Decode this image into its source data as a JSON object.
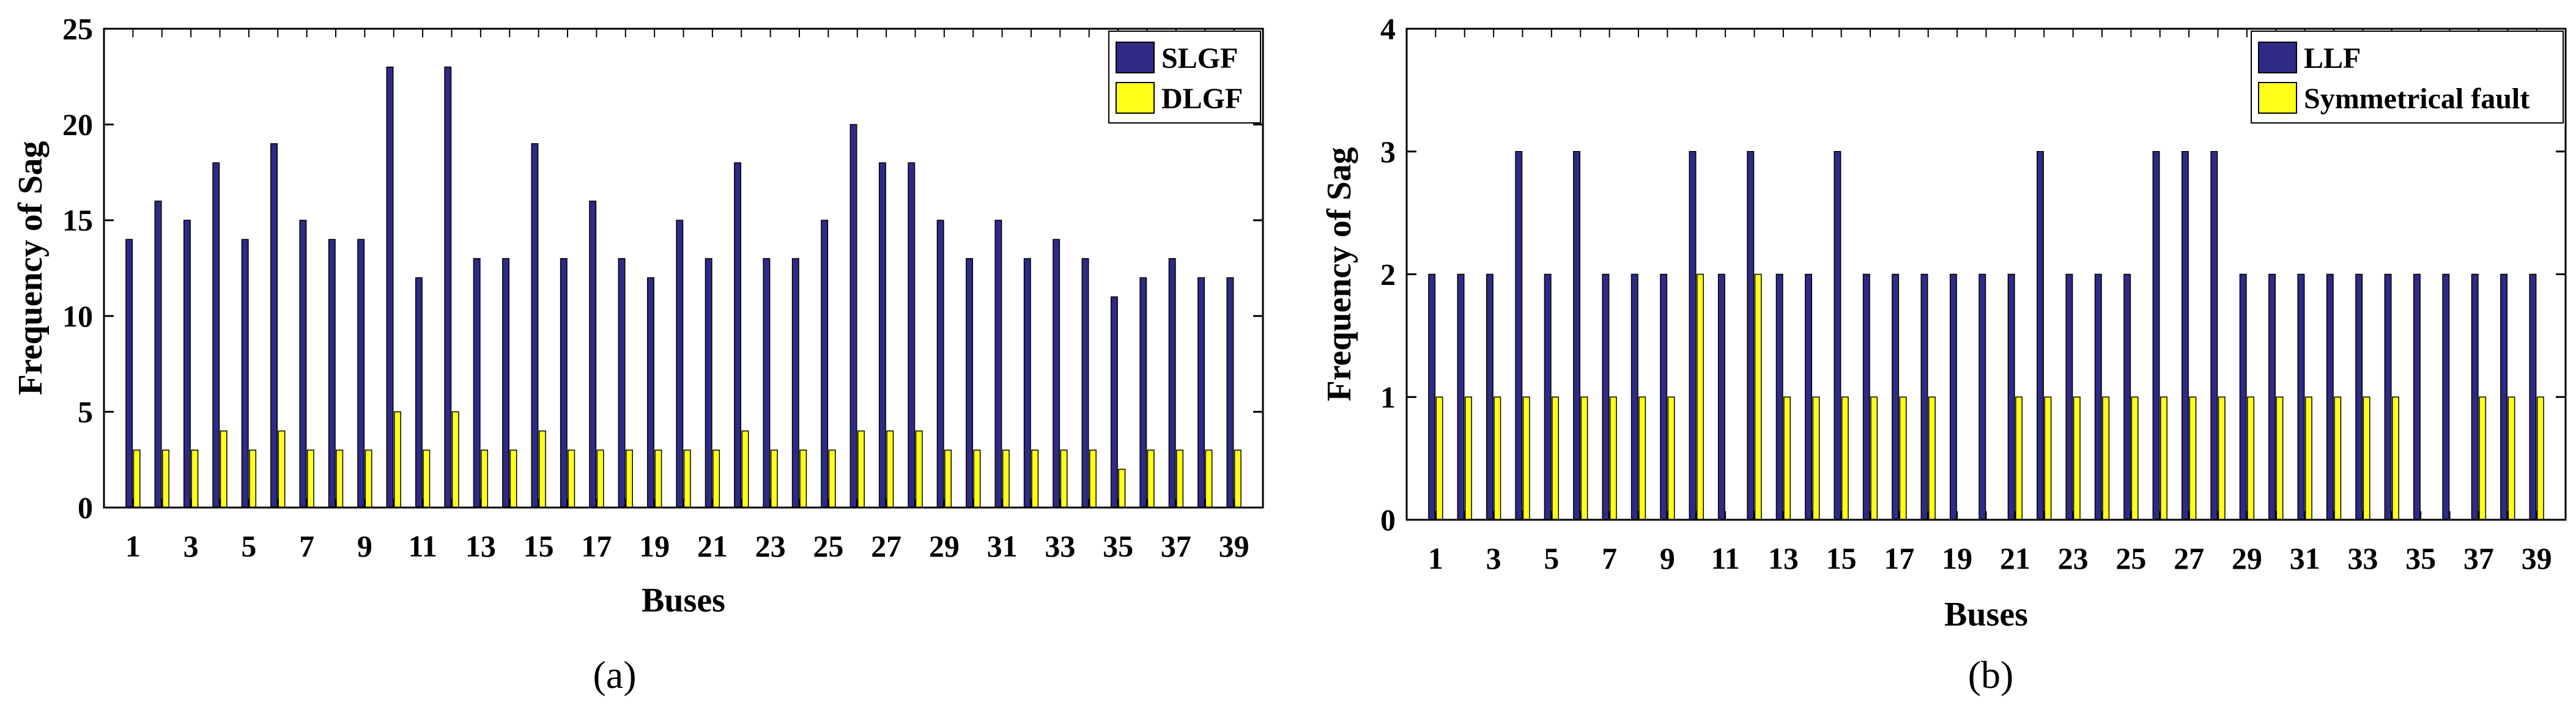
{
  "chart_data": [
    {
      "type": "bar",
      "caption": "(a)",
      "xlabel": "Buses",
      "ylabel": "Frequency of Sag",
      "ylim": [
        0,
        25
      ],
      "yticks": [
        0,
        5,
        10,
        15,
        20,
        25
      ],
      "categories": [
        1,
        2,
        3,
        4,
        5,
        6,
        7,
        8,
        9,
        10,
        11,
        12,
        13,
        14,
        15,
        16,
        17,
        18,
        19,
        20,
        21,
        22,
        23,
        24,
        25,
        26,
        27,
        28,
        29,
        30,
        31,
        32,
        33,
        34,
        35,
        36,
        37,
        38,
        39
      ],
      "xtick_labels": [
        "1",
        "3",
        "5",
        "7",
        "9",
        "11",
        "13",
        "15",
        "17",
        "19",
        "21",
        "23",
        "25",
        "27",
        "29",
        "31",
        "33",
        "35",
        "37",
        "39"
      ],
      "legend_position": "top-right",
      "series": [
        {
          "name": "SLGF",
          "color": "#2e2a86",
          "values": [
            14,
            16,
            15,
            18,
            14,
            19,
            15,
            14,
            14,
            23,
            12,
            23,
            13,
            13,
            19,
            13,
            16,
            13,
            12,
            15,
            13,
            18,
            13,
            13,
            15,
            20,
            18,
            18,
            15,
            13,
            15,
            13,
            14,
            13,
            11,
            12,
            13,
            12,
            12
          ]
        },
        {
          "name": "DLGF",
          "color": "#ffff1a",
          "values": [
            3,
            3,
            3,
            4,
            3,
            4,
            3,
            3,
            3,
            5,
            3,
            5,
            3,
            3,
            4,
            3,
            3,
            3,
            3,
            3,
            3,
            4,
            3,
            3,
            3,
            4,
            4,
            4,
            3,
            3,
            3,
            3,
            3,
            3,
            2,
            3,
            3,
            3,
            3
          ]
        }
      ]
    },
    {
      "type": "bar",
      "caption": "(b)",
      "xlabel": "Buses",
      "ylabel": "Frequency of Sag",
      "ylim": [
        0,
        4
      ],
      "yticks": [
        0,
        1,
        2,
        3,
        4
      ],
      "categories": [
        1,
        2,
        3,
        4,
        5,
        6,
        7,
        8,
        9,
        10,
        11,
        12,
        13,
        14,
        15,
        16,
        17,
        18,
        19,
        20,
        21,
        22,
        23,
        24,
        25,
        26,
        27,
        28,
        29,
        30,
        31,
        32,
        33,
        34,
        35,
        36,
        37,
        38,
        39
      ],
      "xtick_labels": [
        "1",
        "3",
        "5",
        "7",
        "9",
        "11",
        "13",
        "15",
        "17",
        "19",
        "21",
        "23",
        "25",
        "27",
        "29",
        "31",
        "33",
        "35",
        "37",
        "39"
      ],
      "legend_position": "top-right",
      "series": [
        {
          "name": "LLF",
          "color": "#2e2a86",
          "values": [
            2,
            2,
            2,
            3,
            2,
            3,
            2,
            2,
            2,
            3,
            2,
            3,
            2,
            2,
            3,
            2,
            2,
            2,
            2,
            2,
            2,
            3,
            2,
            2,
            2,
            3,
            3,
            3,
            2,
            2,
            2,
            2,
            2,
            2,
            2,
            2,
            2,
            2,
            2
          ]
        },
        {
          "name": "Symmetrical fault",
          "color": "#ffff1a",
          "values": [
            1,
            1,
            1,
            1,
            1,
            1,
            1,
            1,
            1,
            2,
            0,
            2,
            1,
            1,
            1,
            1,
            1,
            1,
            0,
            0,
            1,
            1,
            1,
            1,
            1,
            1,
            1,
            1,
            1,
            1,
            1,
            1,
            1,
            1,
            0,
            0,
            1,
            1,
            1
          ]
        }
      ]
    }
  ]
}
